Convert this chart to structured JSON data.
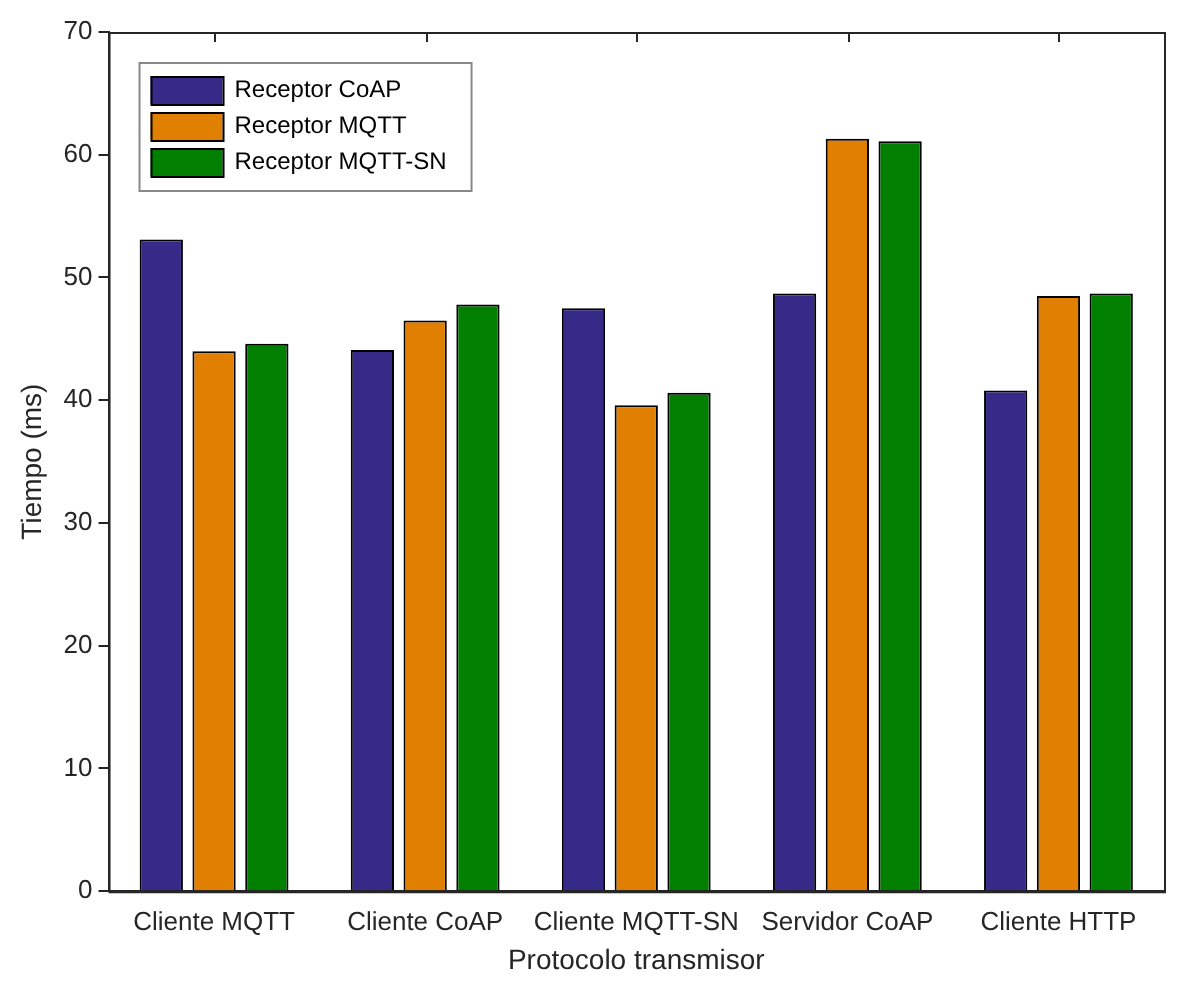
{
  "chart_data": {
    "type": "bar",
    "xlabel": "Protocolo transmisor",
    "ylabel": "Tiempo (ms)",
    "categories": [
      "Cliente MQTT",
      "Cliente CoAP",
      "Cliente MQTT-SN",
      "Servidor CoAP",
      "Cliente HTTP"
    ],
    "series": [
      {
        "name": "Receptor CoAP",
        "color": "#352a87",
        "values": [
          53.1,
          44.1,
          47.5,
          48.7,
          40.8
        ]
      },
      {
        "name": "Receptor MQTT",
        "color": "#e07f00",
        "values": [
          44.0,
          46.5,
          39.6,
          61.3,
          48.5
        ]
      },
      {
        "name": "Receptor MQTT-SN",
        "color": "#007f00",
        "values": [
          44.6,
          47.8,
          40.6,
          61.1,
          48.7
        ]
      }
    ],
    "ylim": [
      0,
      70
    ],
    "yticks": [
      0,
      10,
      20,
      30,
      40,
      50,
      60,
      70
    ],
    "grid": false,
    "legend": "top left"
  }
}
